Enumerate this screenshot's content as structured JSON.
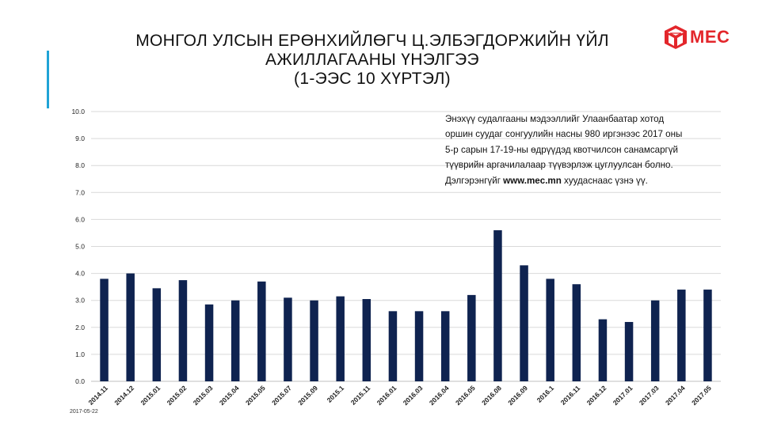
{
  "title": {
    "line1": "МОНГОЛ УЛСЫН ЕРӨНХИЙЛӨГЧ Ц.ЭЛБЭГДОРЖИЙН ҮЙЛ",
    "line2": "АЖИЛЛАГААНЫ ҮНЭЛГЭЭ",
    "line3": "(1-ЭЭС 10 ХҮРТЭЛ)"
  },
  "logo": {
    "text": "MEC",
    "color": "#e3262b",
    "icon": "mec-cube-logo-icon"
  },
  "note": {
    "line1": "Энэхүү судалгааны мэдээллийг Улаанбаатар хотод",
    "line2": "оршин суудаг сонгуулийн насны 980 иргэнээс 2017 оны",
    "line3": "5-р сарын 17-19-ны өдрүүдэд квотчилсон санамсаргүй",
    "line4": "түүврийн аргачилалаар түүвэрлэж цуглуулсан болно.",
    "line5_prefix": "Дэлгэрэнгүйг ",
    "line5_link": "www.mec.mn",
    "line5_suffix": " хуудаснаас үзнэ үү."
  },
  "footer": {
    "date": "2017-05-22"
  },
  "colors": {
    "bar": "#0f2350",
    "grid": "#d9d9d9",
    "accent": "#1fa3d6"
  },
  "chart_data": {
    "type": "bar",
    "title": "",
    "xlabel": "",
    "ylabel": "",
    "ylim": [
      0,
      10
    ],
    "yticks": [
      "0.0",
      "1.0",
      "2.0",
      "3.0",
      "4.0",
      "5.0",
      "6.0",
      "7.0",
      "8.0",
      "9.0",
      "10.0"
    ],
    "grid": true,
    "categories": [
      "2014.11",
      "2014.12",
      "2015.01",
      "2015.02",
      "2015.03",
      "2015.04",
      "2015.05",
      "2015.07",
      "2015.09",
      "2015.1",
      "2015.11",
      "2016.01",
      "2016.03",
      "2016.04",
      "2016.05",
      "2016.08",
      "2016.09",
      "2016.1",
      "2016.11",
      "2016.12",
      "2017.01",
      "2017.03",
      "2017.04",
      "2017.05"
    ],
    "values": [
      3.8,
      4.0,
      3.45,
      3.75,
      2.85,
      3.0,
      3.7,
      3.1,
      3.0,
      3.15,
      3.05,
      2.6,
      2.6,
      2.6,
      3.2,
      5.6,
      4.3,
      3.8,
      3.6,
      2.3,
      2.2,
      3.0,
      3.4,
      3.4
    ]
  }
}
